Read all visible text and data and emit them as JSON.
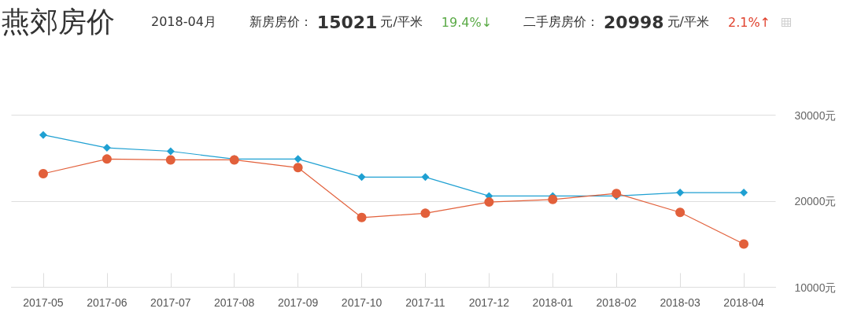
{
  "chart_data": {
    "type": "line",
    "title": "燕郊房价",
    "annotations": [
      "2018-04月",
      "新房房价：",
      "15021",
      "元/平米",
      "19.4%↓",
      "二手房房价：",
      "20998",
      "元/平米",
      "2.1%↑"
    ],
    "categories": [
      "2017-05",
      "2017-06",
      "2017-07",
      "2017-08",
      "2017-09",
      "2017-10",
      "2017-11",
      "2017-12",
      "2018-01",
      "2018-02",
      "2018-03",
      "2018-04"
    ],
    "series": [
      {
        "color": "#1fa0d2",
        "marker": "diamond",
        "values": [
          27700,
          26200,
          25800,
          24900,
          24900,
          22800,
          22800,
          20600,
          20600,
          20600,
          21000,
          20998
        ]
      },
      {
        "color": "#e2603b",
        "marker": "circle",
        "values": [
          23200,
          24900,
          24800,
          24800,
          23900,
          18100,
          18600,
          19900,
          20200,
          20900,
          18700,
          15021
        ]
      }
    ],
    "ylim": [
      10000,
      30000
    ],
    "yticks": [
      {
        "value": 10000,
        "label": "10000元"
      },
      {
        "value": 20000,
        "label": "20000元"
      },
      {
        "value": 30000,
        "label": "30000元"
      }
    ],
    "grid": "y"
  }
}
